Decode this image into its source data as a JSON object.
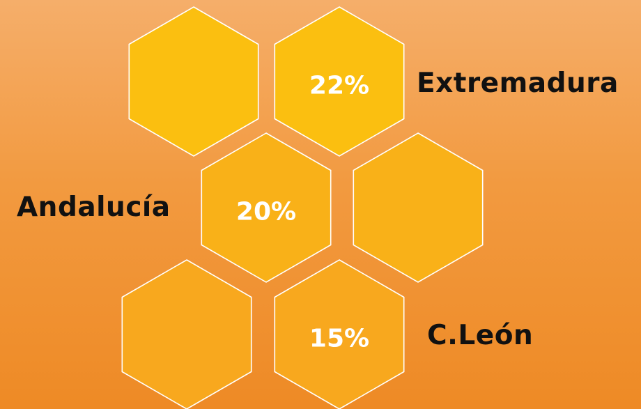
{
  "colors": {
    "hex_fill_top": "#fbbf10",
    "hex_fill_mid": "#f9b118",
    "hex_fill_bottom": "#f8a81e",
    "hex_stroke": "#ffffff",
    "label_color": "#111111",
    "value_color": "#ffffff"
  },
  "hexagons": [
    {
      "id": "hex-top-left",
      "value": ""
    },
    {
      "id": "hex-extremadura",
      "value": "22%"
    },
    {
      "id": "hex-andalucia",
      "value": "20%"
    },
    {
      "id": "hex-mid-right",
      "value": ""
    },
    {
      "id": "hex-bottom-left",
      "value": ""
    },
    {
      "id": "hex-cleon",
      "value": "15%"
    }
  ],
  "labels": {
    "extremadura": "Extremadura",
    "andalucia": "Andalucía",
    "cleon": "C.León"
  }
}
